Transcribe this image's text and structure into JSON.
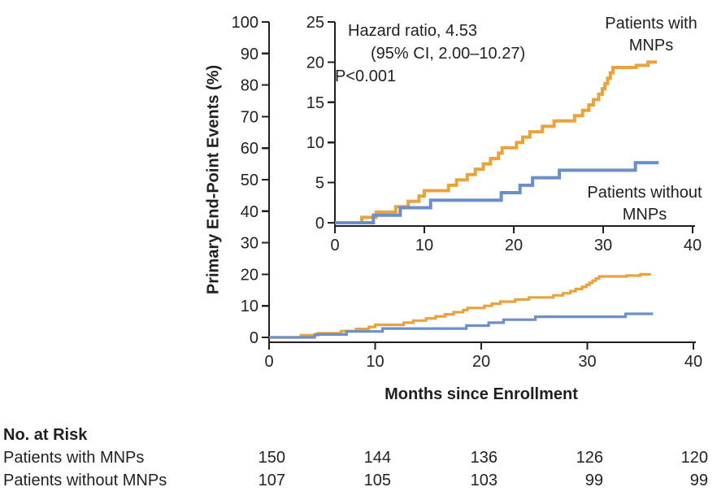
{
  "chart_data": {
    "type": "line",
    "subtype": "kaplan-meier-cumulative-incidence-steps",
    "title": "",
    "xlabel": "Months since Enrollment",
    "ylabel": "Primary End-Point Events (%)",
    "annotation": {
      "line1": "Hazard ratio, 4.53",
      "line2": "(95% CI, 2.00–10.27)",
      "line3": "P<0.001"
    },
    "axes": {
      "main": {
        "xlim": [
          0,
          40
        ],
        "ylim": [
          0,
          100
        ],
        "xticks": [
          0,
          10,
          20,
          30,
          40
        ],
        "yticks": [
          0,
          10,
          20,
          30,
          40,
          50,
          60,
          70,
          80,
          90,
          100
        ],
        "grid": false
      },
      "inset": {
        "xlim": [
          0,
          40
        ],
        "ylim": [
          0,
          25
        ],
        "xticks": [
          0,
          10,
          20,
          30,
          40
        ],
        "yticks": [
          0,
          5,
          10,
          15,
          20,
          25
        ],
        "grid": false
      }
    },
    "legend_position": "in-plot text labels",
    "series": [
      {
        "name": "Patients with MNPs",
        "label_lines": [
          "Patients with",
          "MNPs"
        ],
        "color": "#E8A33D",
        "end_month": 36.0,
        "points": [
          [
            3.0,
            0.67
          ],
          [
            4.6,
            1.33
          ],
          [
            6.8,
            2.0
          ],
          [
            8.2,
            2.67
          ],
          [
            9.4,
            3.33
          ],
          [
            10.0,
            4.0
          ],
          [
            12.7,
            4.67
          ],
          [
            13.6,
            5.33
          ],
          [
            14.8,
            6.0
          ],
          [
            15.7,
            6.67
          ],
          [
            16.6,
            7.33
          ],
          [
            17.4,
            8.0
          ],
          [
            18.3,
            8.67
          ],
          [
            18.7,
            9.33
          ],
          [
            20.3,
            10.0
          ],
          [
            21.0,
            10.67
          ],
          [
            21.8,
            11.33
          ],
          [
            23.2,
            12.0
          ],
          [
            24.5,
            12.67
          ],
          [
            26.8,
            13.33
          ],
          [
            27.7,
            14.0
          ],
          [
            28.4,
            14.67
          ],
          [
            28.9,
            15.33
          ],
          [
            29.5,
            16.0
          ],
          [
            29.9,
            16.67
          ],
          [
            30.2,
            17.33
          ],
          [
            30.5,
            18.0
          ],
          [
            30.8,
            18.67
          ],
          [
            31.1,
            19.33
          ],
          [
            33.7,
            19.6
          ],
          [
            35.0,
            20.0
          ]
        ]
      },
      {
        "name": "Patients without MNPs",
        "label_lines": [
          "Patients without",
          "MNPs"
        ],
        "color": "#6B8FC8",
        "end_month": 36.2,
        "points": [
          [
            4.3,
            0.93
          ],
          [
            7.3,
            1.87
          ],
          [
            10.7,
            2.8
          ],
          [
            18.6,
            3.74
          ],
          [
            20.7,
            4.67
          ],
          [
            22.1,
            5.61
          ],
          [
            25.1,
            6.54
          ],
          [
            33.6,
            7.48
          ]
        ]
      }
    ]
  },
  "risk_table": {
    "title": "No. at Risk",
    "rows": [
      {
        "label": "Patients with MNPs",
        "values": [
          "150",
          "144",
          "136",
          "126",
          "120"
        ]
      },
      {
        "label": "Patients without MNPs",
        "values": [
          "107",
          "105",
          "103",
          "99",
          "99"
        ]
      }
    ]
  }
}
